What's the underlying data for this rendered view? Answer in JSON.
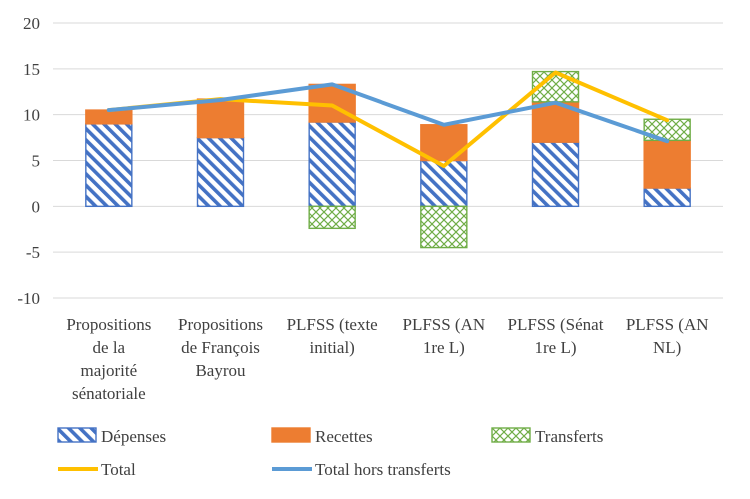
{
  "chart_data": {
    "type": "bar",
    "stacked": true,
    "categories": [
      [
        "Propositions",
        "de la",
        "majorité",
        "sénatoriale"
      ],
      [
        "Propositions",
        "de François",
        "Bayrou"
      ],
      [
        "PLFSS (texte",
        "initial)"
      ],
      [
        "PLFSS (AN",
        "1re L)"
      ],
      [
        "PLFSS (Sénat",
        "1re L)"
      ],
      [
        "PLFSS (AN",
        "NL)"
      ]
    ],
    "series": [
      {
        "name": "Dépenses",
        "kind": "bar",
        "values": [
          9.0,
          7.5,
          9.2,
          5.0,
          7.0,
          2.0
        ],
        "color": "#4472c4",
        "pattern": "diagonal"
      },
      {
        "name": "Recettes",
        "kind": "bar",
        "values": [
          1.5,
          4.2,
          4.1,
          3.9,
          4.4,
          5.2
        ],
        "color": "#ed7d31",
        "pattern": "solid"
      },
      {
        "name": "Transferts",
        "kind": "bar",
        "values": [
          0.0,
          0.0,
          -2.4,
          -4.5,
          3.3,
          2.3
        ],
        "color": "#70ad47",
        "pattern": "lattice"
      },
      {
        "name": "Total",
        "kind": "line",
        "values": [
          10.5,
          11.7,
          11.0,
          4.4,
          14.6,
          9.4
        ],
        "color": "#ffc000"
      },
      {
        "name": "Total hors transferts",
        "kind": "line",
        "values": [
          10.5,
          11.6,
          13.3,
          8.9,
          11.3,
          7.1
        ],
        "color": "#5b9bd5"
      }
    ],
    "y_ticks": [
      "20",
      "15",
      "10",
      "5",
      "0",
      "-5",
      "-10"
    ],
    "ylim": [
      -10,
      20
    ],
    "grid": true,
    "legend_position": "bottom"
  }
}
